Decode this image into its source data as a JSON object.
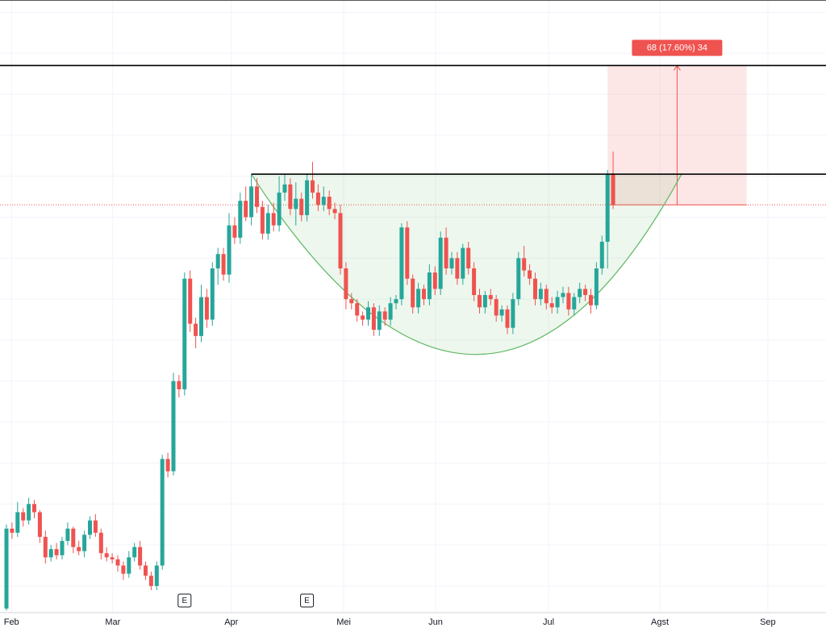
{
  "chart_data": {
    "type": "candlestick",
    "up_color": "#26a69a",
    "down_color": "#ef5350",
    "xlim": [
      -1.16,
      147.25
    ],
    "ylim": [
      187,
      486
    ],
    "xticks": [
      {
        "value": 0.9,
        "label": "Feb"
      },
      {
        "value": 19.1,
        "label": "Mar"
      },
      {
        "value": 40.4,
        "label": "Apr"
      },
      {
        "value": 60.6,
        "label": "Mei"
      },
      {
        "value": 77.1,
        "label": "Jun"
      },
      {
        "value": 97.4,
        "label": "Jul"
      },
      {
        "value": 117.4,
        "label": "Agst"
      },
      {
        "value": 136.8,
        "label": "Sep"
      }
    ],
    "ygrid": [
      200,
      220,
      240,
      260,
      280,
      300,
      320,
      340,
      360,
      380,
      400,
      420,
      440,
      460,
      480
    ],
    "open": [
      189,
      228,
      226,
      236,
      232,
      240,
      236,
      224,
      214,
      218,
      215,
      222,
      228,
      219,
      217,
      225,
      232,
      226,
      216,
      214,
      213,
      210,
      206,
      214,
      219,
      210,
      205,
      200,
      210,
      262,
      256,
      300,
      296,
      350,
      328,
      322,
      341,
      330,
      355,
      362,
      352,
      376,
      370,
      388,
      380,
      395,
      385,
      372,
      382,
      376,
      392,
      396,
      384,
      389,
      381,
      398,
      392,
      386,
      390,
      384,
      382,
      355,
      340,
      338,
      332,
      330,
      336,
      325,
      334,
      330,
      338,
      340,
      375,
      350,
      336,
      345,
      340,
      353,
      345,
      370,
      355,
      360,
      350,
      365,
      355,
      342,
      336,
      342,
      340,
      332,
      335,
      326,
      340,
      360,
      354,
      350,
      340,
      345,
      338,
      336,
      341,
      343,
      335,
      341,
      345,
      342,
      337,
      355,
      368,
      401
    ],
    "high": [
      230,
      231,
      241,
      238,
      243,
      242,
      237,
      227,
      220,
      221,
      224,
      231,
      229,
      222,
      227,
      234,
      235,
      228,
      219,
      216,
      215,
      212,
      217,
      221,
      222,
      212,
      207,
      212,
      264,
      265,
      304,
      303,
      353,
      354,
      331,
      347,
      345,
      358,
      365,
      365,
      382,
      380,
      392,
      395,
      401,
      399,
      388,
      386,
      387,
      400,
      401,
      399,
      397,
      392,
      401,
      407,
      396,
      395,
      393,
      387,
      386,
      358,
      343,
      340,
      334,
      339,
      338,
      337,
      336,
      341,
      342,
      377,
      378,
      352,
      348,
      347,
      357,
      356,
      373,
      375,
      363,
      363,
      367,
      368,
      358,
      345,
      344,
      345,
      342,
      337,
      337,
      343,
      363,
      366,
      357,
      353,
      348,
      347,
      341,
      344,
      346,
      346,
      343,
      348,
      347,
      345,
      358,
      371,
      403,
      412
    ],
    "low": [
      188,
      223,
      224,
      229,
      230,
      233,
      221,
      211,
      212,
      213,
      213,
      220,
      216,
      215,
      214,
      223,
      224,
      213,
      212,
      211,
      207,
      203,
      204,
      212,
      208,
      203,
      198,
      198,
      208,
      253,
      254,
      292,
      293,
      324,
      316,
      319,
      326,
      327,
      347,
      349,
      348,
      367,
      367,
      378,
      376,
      382,
      369,
      369,
      373,
      373,
      388,
      381,
      376,
      378,
      378,
      389,
      383,
      383,
      381,
      379,
      352,
      335,
      335,
      329,
      327,
      327,
      322,
      322,
      327,
      327,
      335,
      337,
      347,
      333,
      333,
      337,
      337,
      342,
      342,
      352,
      352,
      347,
      347,
      352,
      339,
      333,
      333,
      337,
      329,
      329,
      323,
      323,
      337,
      351,
      347,
      337,
      337,
      335,
      333,
      333,
      338,
      332,
      332,
      338,
      339,
      333,
      335,
      352,
      355,
      384
    ],
    "close": [
      228,
      226,
      236,
      232,
      240,
      236,
      224,
      214,
      218,
      215,
      222,
      228,
      219,
      217,
      225,
      232,
      226,
      216,
      214,
      213,
      210,
      206,
      214,
      219,
      210,
      205,
      200,
      210,
      262,
      256,
      300,
      296,
      350,
      328,
      322,
      341,
      330,
      355,
      362,
      352,
      376,
      370,
      388,
      380,
      395,
      385,
      372,
      382,
      376,
      392,
      396,
      384,
      389,
      381,
      398,
      392,
      386,
      390,
      384,
      382,
      355,
      340,
      338,
      332,
      330,
      336,
      325,
      334,
      330,
      338,
      340,
      375,
      350,
      336,
      345,
      340,
      353,
      345,
      370,
      355,
      360,
      350,
      365,
      355,
      342,
      336,
      342,
      340,
      332,
      335,
      326,
      340,
      360,
      354,
      350,
      340,
      345,
      338,
      336,
      341,
      343,
      335,
      341,
      345,
      342,
      337,
      355,
      368,
      401,
      386
    ],
    "levels": [
      {
        "value": 454,
        "color": "#000000"
      },
      {
        "value": 401,
        "from": 44,
        "color": "#000000"
      }
    ],
    "cup": {
      "start": [
        44,
        401
      ],
      "bottom": [
        84.3,
        313
      ],
      "end": [
        121.3,
        401
      ]
    },
    "position": {
      "x": [
        108,
        133
      ],
      "entry": 386,
      "target": 454,
      "label": "68 (17.60%) 34"
    },
    "events": [
      {
        "x": 32,
        "label": "E"
      },
      {
        "x": 54,
        "label": "E"
      }
    ]
  }
}
